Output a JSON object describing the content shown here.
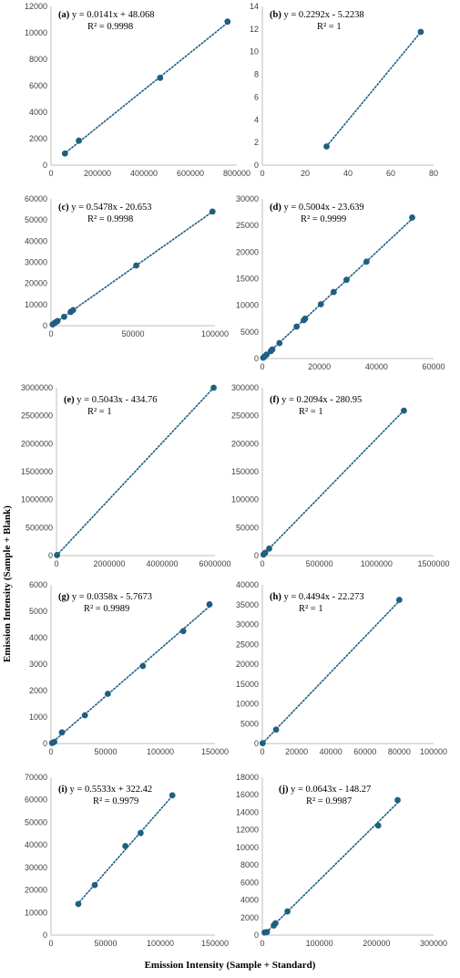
{
  "figure": {
    "ylabel": "Emission Intensity (Sample + Blank)",
    "xlabel": "Emission Intensity (Sample + Standard)"
  },
  "chart_data": [
    {
      "label": "(a)",
      "type": "scatter",
      "equation": "y = 0.0141x + 48.068",
      "r2": "R² = 0.9998",
      "xlim": [
        0,
        800000
      ],
      "ylim": [
        0,
        12000
      ],
      "xticks": [
        0,
        200000,
        400000,
        600000,
        800000
      ],
      "xtick_labels": [
        "0",
        "200000",
        "400000",
        "600000",
        "800000"
      ],
      "yticks": [
        0,
        2000,
        4000,
        6000,
        8000,
        10000,
        12000
      ],
      "ytick_labels": [
        "0",
        "2000",
        "4000",
        "6000",
        "8000",
        "10000",
        "12000"
      ],
      "x": [
        60000,
        120000,
        470000,
        760000
      ],
      "y": [
        880,
        1850,
        6600,
        10850
      ],
      "trend": [
        55000,
        765000
      ],
      "slope": 0.0141,
      "intercept": 48.068
    },
    {
      "label": "(b)",
      "type": "scatter",
      "equation": "y = 0.2292x - 5.2238",
      "r2": "R² = 1",
      "xlim": [
        0,
        80
      ],
      "ylim": [
        0,
        14
      ],
      "xticks": [
        0,
        20,
        40,
        60,
        80
      ],
      "xtick_labels": [
        "0",
        "20",
        "40",
        "60",
        "80"
      ],
      "yticks": [
        0,
        2,
        4,
        6,
        8,
        10,
        12,
        14
      ],
      "ytick_labels": [
        "0",
        "2",
        "4",
        "6",
        "8",
        "10",
        "12",
        "14"
      ],
      "x": [
        30,
        74
      ],
      "y": [
        1.65,
        11.75
      ],
      "trend": [
        30,
        74
      ],
      "slope": 0.2292,
      "intercept": -5.2238
    },
    {
      "label": "(c)",
      "type": "scatter",
      "equation": "y = 0.5478x - 20.653",
      "r2": "R² = 0.9998",
      "xlim": [
        0,
        100000
      ],
      "ylim": [
        0,
        60000
      ],
      "xticks": [
        0,
        50000,
        100000
      ],
      "xtick_labels": [
        "0",
        "50000",
        "100000"
      ],
      "yticks": [
        0,
        10000,
        20000,
        30000,
        40000,
        50000,
        60000
      ],
      "ytick_labels": [
        "0",
        "10000",
        "20000",
        "30000",
        "40000",
        "50000",
        "60000"
      ],
      "x": [
        1000,
        2000,
        3000,
        4000,
        8000,
        12000,
        13500,
        52000,
        98500
      ],
      "y": [
        600,
        1200,
        1700,
        2200,
        4200,
        6500,
        7400,
        28500,
        54000
      ],
      "trend": [
        0,
        99000
      ],
      "slope": 0.5478,
      "intercept": -20.653
    },
    {
      "label": "(d)",
      "type": "scatter",
      "equation": "y = 0.5004x - 23.639",
      "r2": "R² = 0.9999",
      "xlim": [
        0,
        60000
      ],
      "ylim": [
        0,
        30000
      ],
      "xticks": [
        0,
        20000,
        40000,
        60000
      ],
      "xtick_labels": [
        "0",
        "20000",
        "40000",
        "60000"
      ],
      "yticks": [
        0,
        5000,
        10000,
        15000,
        20000,
        25000,
        30000
      ],
      "ytick_labels": [
        "0",
        "5000",
        "10000",
        "15000",
        "20000",
        "25000",
        "30000"
      ],
      "x": [
        300,
        800,
        1500,
        3000,
        3500,
        6000,
        12000,
        14500,
        15000,
        20500,
        25000,
        29500,
        36500,
        52500
      ],
      "y": [
        150,
        400,
        750,
        1400,
        1700,
        2900,
        6000,
        7200,
        7500,
        10200,
        12500,
        14800,
        18200,
        26500
      ],
      "trend": [
        0,
        53000
      ],
      "slope": 0.5004,
      "intercept": -23.639
    },
    {
      "label": "(e)",
      "type": "scatter",
      "equation": "y = 0.5043x - 434.76",
      "r2": "R² = 1",
      "xlim": [
        0,
        6000000
      ],
      "ylim": [
        0,
        3000000
      ],
      "xticks": [
        0,
        2000000,
        4000000,
        6000000
      ],
      "xtick_labels": [
        "0",
        "2000000",
        "4000000",
        "6000000"
      ],
      "yticks": [
        0,
        500000,
        1000000,
        1500000,
        2000000,
        2500000,
        3000000
      ],
      "ytick_labels": [
        "0",
        "500000",
        "1000000",
        "1500000",
        "2000000",
        "2500000",
        "3000000"
      ],
      "x": [
        20000,
        5950000
      ],
      "y": [
        9000,
        3000000
      ],
      "trend": [
        0,
        5950000
      ],
      "slope": 0.5043,
      "intercept": -434.76
    },
    {
      "label": "(f)",
      "type": "scatter",
      "equation": "y = 0.2094x - 280.95",
      "r2": "R² = 1",
      "xlim": [
        0,
        1500000
      ],
      "ylim": [
        0,
        300000
      ],
      "xticks": [
        0,
        500000,
        1000000,
        1500000
      ],
      "xtick_labels": [
        "0",
        "500000",
        "1000000",
        "1500000"
      ],
      "yticks": [
        0,
        50000,
        100000,
        150000,
        200000,
        250000,
        300000
      ],
      "ytick_labels": [
        "0",
        "50000",
        "100000",
        "150000",
        "200000",
        "250000",
        "300000"
      ],
      "x": [
        10000,
        25000,
        60000,
        1240000
      ],
      "y": [
        1800,
        5000,
        12500,
        259000
      ],
      "trend": [
        0,
        1240000
      ],
      "slope": 0.2094,
      "intercept": -280.95
    },
    {
      "label": "(g)",
      "type": "scatter",
      "equation": "y = 0.0358x - 5.7673",
      "r2": "R² = 0.9989",
      "xlim": [
        0,
        150000
      ],
      "ylim": [
        0,
        6000
      ],
      "xticks": [
        0,
        50000,
        100000,
        150000
      ],
      "xtick_labels": [
        "0",
        "50000",
        "100000",
        "150000"
      ],
      "yticks": [
        0,
        1000,
        2000,
        3000,
        4000,
        5000,
        6000
      ],
      "ytick_labels": [
        "0",
        "1000",
        "2000",
        "3000",
        "4000",
        "5000",
        "6000"
      ],
      "x": [
        1000,
        3000,
        10000,
        31000,
        52000,
        84000,
        121000,
        145000
      ],
      "y": [
        20,
        60,
        420,
        1070,
        1880,
        2930,
        4250,
        5260
      ],
      "trend": [
        0,
        146000
      ],
      "slope": 0.0358,
      "intercept": -5.7673
    },
    {
      "label": "(h)",
      "type": "scatter",
      "equation": "y = 0.4494x - 22.273",
      "r2": "R² = 1",
      "xlim": [
        0,
        100000
      ],
      "ylim": [
        0,
        40000
      ],
      "xticks": [
        0,
        20000,
        40000,
        60000,
        80000,
        100000
      ],
      "xtick_labels": [
        "0",
        "20000",
        "40000",
        "60000",
        "80000",
        "100000"
      ],
      "yticks": [
        0,
        5000,
        10000,
        15000,
        20000,
        25000,
        30000,
        35000,
        40000
      ],
      "ytick_labels": [
        "0",
        "5000",
        "10000",
        "15000",
        "20000",
        "25000",
        "30000",
        "35000",
        "40000"
      ],
      "x": [
        200,
        8000,
        80000
      ],
      "y": [
        80,
        3500,
        36200
      ],
      "trend": [
        0,
        80500
      ],
      "slope": 0.4494,
      "intercept": -22.273
    },
    {
      "label": "(i)",
      "type": "scatter",
      "equation": "y = 0.5533x + 322.42",
      "r2": "R² = 0.9979",
      "xlim": [
        0,
        150000
      ],
      "ylim": [
        0,
        70000
      ],
      "xticks": [
        0,
        50000,
        100000,
        150000
      ],
      "xtick_labels": [
        "0",
        "50000",
        "100000",
        "150000"
      ],
      "yticks": [
        0,
        10000,
        20000,
        30000,
        40000,
        50000,
        60000,
        70000
      ],
      "ytick_labels": [
        "0",
        "10000",
        "20000",
        "30000",
        "40000",
        "50000",
        "60000",
        "70000"
      ],
      "x": [
        25000,
        40000,
        68000,
        82000,
        111000
      ],
      "y": [
        13800,
        22200,
        39500,
        45300,
        62000
      ],
      "trend": [
        24000,
        112000
      ],
      "slope": 0.5533,
      "intercept": 322.42
    },
    {
      "label": "(j)",
      "type": "scatter",
      "equation": "y = 0.0643x - 148.27",
      "r2": "R² = 0.9987",
      "xlim": [
        0,
        300000
      ],
      "ylim": [
        0,
        18000
      ],
      "xticks": [
        0,
        100000,
        200000,
        300000
      ],
      "xtick_labels": [
        "0",
        "100000",
        "200000",
        "300000"
      ],
      "yticks": [
        0,
        2000,
        4000,
        6000,
        8000,
        10000,
        12000,
        14000,
        16000,
        18000
      ],
      "ytick_labels": [
        "0",
        "2000",
        "4000",
        "6000",
        "8000",
        "10000",
        "12000",
        "14000",
        "16000",
        "18000"
      ],
      "x": [
        4000,
        8000,
        20000,
        23000,
        44000,
        203000,
        237000
      ],
      "y": [
        300,
        350,
        1100,
        1350,
        2700,
        12500,
        15400
      ],
      "trend": [
        3000,
        240000
      ],
      "slope": 0.0643,
      "intercept": -148.27
    }
  ]
}
